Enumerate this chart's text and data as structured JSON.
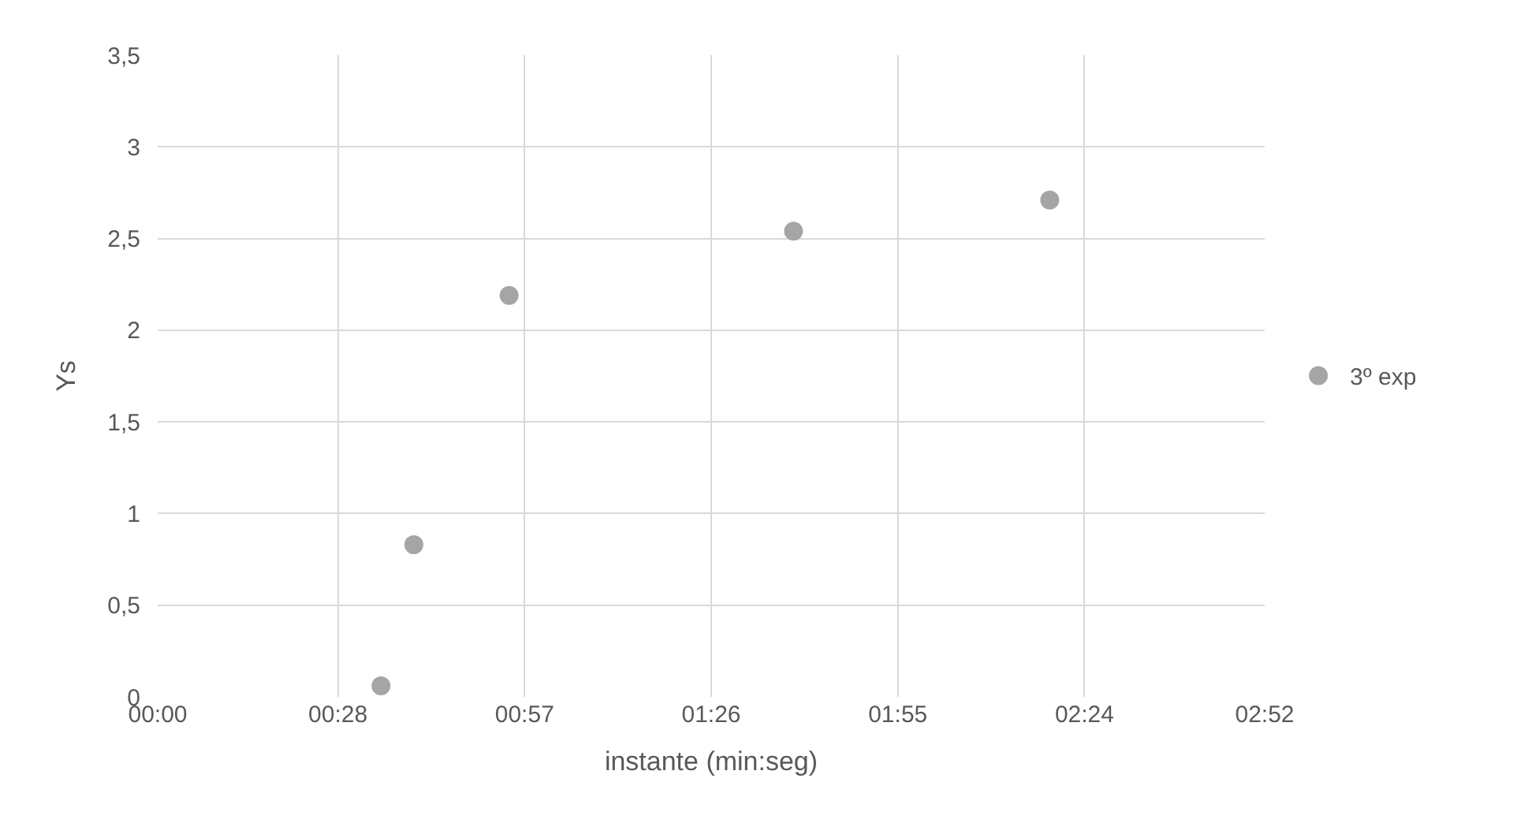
{
  "chart_data": {
    "type": "scatter",
    "xlabel": "instante (min:seg)",
    "ylabel": "Ys",
    "x": [
      34.7,
      39.8,
      54.6,
      98.8,
      138.6
    ],
    "series": [
      {
        "name": "3º exp",
        "color": "#a5a5a5",
        "values": [
          0.06,
          0.83,
          2.19,
          2.54,
          2.71
        ]
      }
    ],
    "xlim": [
      0,
      172
    ],
    "xticks": [
      {
        "value": 0,
        "label": "00:00"
      },
      {
        "value": 28,
        "label": "00:28"
      },
      {
        "value": 57,
        "label": "00:57"
      },
      {
        "value": 86,
        "label": "01:26"
      },
      {
        "value": 115,
        "label": "01:55"
      },
      {
        "value": 144,
        "label": "02:24"
      },
      {
        "value": 172,
        "label": "02:52"
      }
    ],
    "ylim": [
      0,
      3.5
    ],
    "yticks": [
      0,
      {
        "value": 0.5,
        "label": "0,5"
      },
      1,
      {
        "value": 1.5,
        "label": "1,5"
      },
      2,
      {
        "value": 2.5,
        "label": "2,5"
      },
      3,
      {
        "value": 3.5,
        "label": "3,5"
      }
    ],
    "grid": true,
    "legend": "right",
    "marker": "circle"
  }
}
